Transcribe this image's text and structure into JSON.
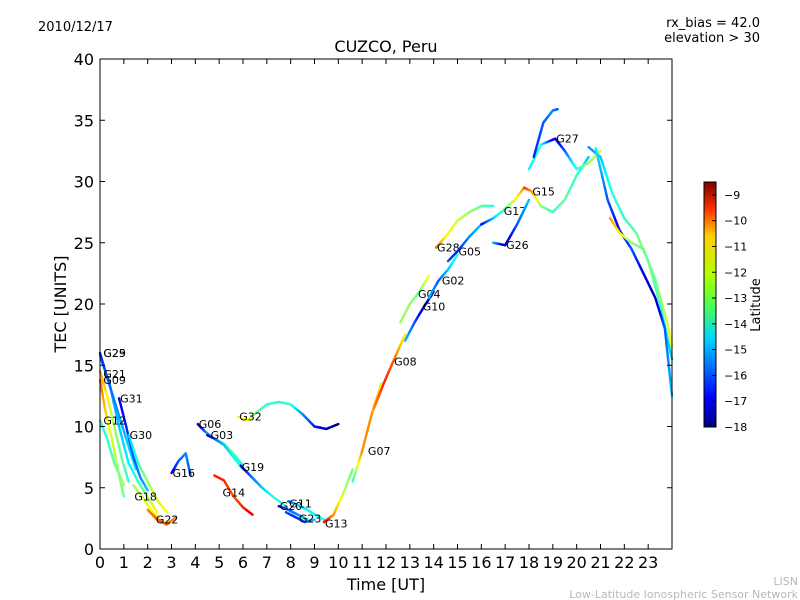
{
  "header": {
    "date": "2010/12/17",
    "rx_bias": "rx_bias = 42.0",
    "elevation": "elevation > 30",
    "credit_line1": "LISN",
    "credit_line2": "Low-Latitude Ionospheric Sensor Network"
  },
  "chart_data": {
    "type": "scatter",
    "title": "CUZCO, Peru",
    "xlabel": "Time [UT]",
    "ylabel": "TEC [UNITS]",
    "xlim": [
      0,
      24
    ],
    "ylim": [
      0,
      40
    ],
    "xticks": [
      "0",
      "1",
      "2",
      "3",
      "4",
      "5",
      "6",
      "7",
      "8",
      "9",
      "10",
      "11",
      "12",
      "13",
      "14",
      "15",
      "16",
      "17",
      "18",
      "19",
      "20",
      "21",
      "22",
      "23"
    ],
    "yticks": [
      "0",
      "5",
      "10",
      "15",
      "20",
      "25",
      "30",
      "35",
      "40"
    ],
    "colorbar": {
      "label": "Latitude",
      "range": [
        -18,
        -8.5
      ],
      "ticks": [
        "−9",
        "−10",
        "−11",
        "−12",
        "−13",
        "−14",
        "−15",
        "−16",
        "−17",
        "−18"
      ],
      "colormap": "jet"
    },
    "series": [
      {
        "name": "G29",
        "label_at": [
          0.1,
          16.0
        ],
        "points": [
          [
            0.0,
            15.8,
            -16
          ],
          [
            0.4,
            13.5,
            -15.5
          ],
          [
            0.8,
            10,
            -15
          ],
          [
            1.2,
            7,
            -14.5
          ],
          [
            1.6,
            5.5,
            -14
          ],
          [
            2.0,
            4.2,
            -13
          ],
          [
            2.4,
            3,
            -12
          ]
        ]
      },
      {
        "name": "G25",
        "label_at": [
          0.1,
          16.0
        ],
        "points": [
          [
            0.0,
            16.0,
            -16.5
          ],
          [
            0.3,
            14,
            -16
          ],
          [
            0.7,
            11.5,
            -15.5
          ],
          [
            1.1,
            9,
            -15
          ],
          [
            1.5,
            6.5,
            -14.5
          ]
        ]
      },
      {
        "name": "G21",
        "label_at": [
          0.1,
          14.3
        ],
        "points": [
          [
            0.0,
            14.5,
            -11
          ],
          [
            0.3,
            12.5,
            -12
          ],
          [
            0.6,
            10,
            -13
          ],
          [
            0.9,
            7.5,
            -13.5
          ],
          [
            1.2,
            5.5,
            -14
          ]
        ]
      },
      {
        "name": "G09",
        "label_at": [
          0.1,
          13.8
        ],
        "points": [
          [
            0.0,
            13.8,
            -10.5
          ],
          [
            0.2,
            11.5,
            -11.5
          ],
          [
            0.5,
            9,
            -12.5
          ],
          [
            0.8,
            6,
            -13
          ],
          [
            1.0,
            4.3,
            -13.5
          ]
        ]
      },
      {
        "name": "G31",
        "label_at": [
          0.8,
          12.3
        ],
        "points": [
          [
            0.8,
            12.3,
            -17
          ],
          [
            1.1,
            10,
            -16.5
          ],
          [
            1.4,
            7.5,
            -16
          ],
          [
            1.7,
            5.8,
            -15.5
          ],
          [
            2.0,
            4.8,
            -15
          ]
        ]
      },
      {
        "name": "G12",
        "label_at": [
          0.1,
          10.5
        ],
        "points": [
          [
            0.0,
            10.5,
            -14
          ],
          [
            0.3,
            9,
            -14
          ],
          [
            0.6,
            7,
            -13.5
          ],
          [
            1.0,
            5.2,
            -13
          ]
        ]
      },
      {
        "name": "G30",
        "label_at": [
          1.2,
          9.3
        ],
        "points": [
          [
            1.2,
            9.3,
            -15
          ],
          [
            1.6,
            7,
            -14
          ],
          [
            2.0,
            5.5,
            -13
          ],
          [
            2.4,
            4,
            -12.5
          ],
          [
            2.8,
            3,
            -12
          ]
        ]
      },
      {
        "name": "G18",
        "label_at": [
          1.4,
          4.3
        ],
        "points": [
          [
            1.4,
            5.2,
            -13
          ],
          [
            1.8,
            4.2,
            -12.5
          ],
          [
            2.2,
            3,
            -12
          ],
          [
            2.6,
            2.2,
            -11.5
          ]
        ]
      },
      {
        "name": "G22",
        "label_at": [
          2.3,
          2.4
        ],
        "points": [
          [
            2.0,
            3.2,
            -11
          ],
          [
            2.4,
            2.4,
            -10.5
          ],
          [
            2.8,
            2.0,
            -10.5
          ],
          [
            3.2,
            2.6,
            -11
          ]
        ]
      },
      {
        "name": "G16",
        "label_at": [
          3.0,
          6.2
        ],
        "points": [
          [
            3.0,
            6.2,
            -17
          ],
          [
            3.3,
            7.2,
            -16
          ],
          [
            3.6,
            7.8,
            -15.5
          ],
          [
            3.8,
            6,
            -16
          ]
        ]
      },
      {
        "name": "G06",
        "label_at": [
          4.1,
          10.2
        ],
        "points": [
          [
            4.1,
            10.2,
            -17.5
          ],
          [
            4.4,
            9.6,
            -16
          ],
          [
            4.8,
            9.0,
            -14
          ],
          [
            5.2,
            8.6,
            -13.5
          ],
          [
            5.6,
            7.8,
            -13.5
          ],
          [
            6.0,
            6.8,
            -14.5
          ]
        ]
      },
      {
        "name": "G03",
        "label_at": [
          4.6,
          9.3
        ],
        "points": [
          [
            4.5,
            9.3,
            -18
          ],
          [
            4.8,
            9.0,
            -16
          ],
          [
            5.2,
            8.5,
            -15
          ],
          [
            5.6,
            7.5,
            -14.5
          ],
          [
            6.0,
            6.5,
            -14
          ]
        ]
      },
      {
        "name": "G32",
        "label_at": [
          5.8,
          10.8
        ],
        "points": [
          [
            5.8,
            10.8,
            -12
          ],
          [
            6.2,
            10.5,
            -12
          ],
          [
            6.6,
            11.2,
            -13.5
          ],
          [
            7.0,
            11.8,
            -14
          ],
          [
            7.5,
            12.0,
            -14
          ],
          [
            8.0,
            11.8,
            -14
          ],
          [
            8.5,
            11,
            -15.5
          ],
          [
            9.0,
            10.0,
            -16.5
          ],
          [
            9.5,
            9.8,
            -17.5
          ],
          [
            10.0,
            10.2,
            -18
          ]
        ]
      },
      {
        "name": "G19",
        "label_at": [
          5.9,
          6.7
        ],
        "points": [
          [
            5.9,
            6.8,
            -17.5
          ],
          [
            6.3,
            6.0,
            -16
          ],
          [
            6.8,
            5.0,
            -15
          ],
          [
            7.3,
            4.2,
            -14
          ],
          [
            7.8,
            3.5,
            -14
          ]
        ]
      },
      {
        "name": "G14",
        "label_at": [
          5.1,
          4.6
        ],
        "points": [
          [
            4.8,
            6.0,
            -10
          ],
          [
            5.2,
            5.6,
            -10
          ],
          [
            5.6,
            4.3,
            -10.5
          ],
          [
            6.0,
            3.4,
            -10
          ],
          [
            6.4,
            2.8,
            -9.5
          ]
        ]
      },
      {
        "name": "G20",
        "label_at": [
          7.5,
          3.5
        ],
        "points": [
          [
            7.5,
            3.5,
            -17
          ],
          [
            7.9,
            3.2,
            -16
          ],
          [
            8.3,
            2.8,
            -15.5
          ],
          [
            8.7,
            2.4,
            -15
          ]
        ]
      },
      {
        "name": "G11",
        "label_at": [
          7.9,
          3.7
        ],
        "points": [
          [
            7.9,
            3.9,
            -16
          ],
          [
            8.3,
            3.6,
            -15
          ],
          [
            8.7,
            3.2,
            -14.5
          ],
          [
            9.1,
            2.7,
            -14.5
          ],
          [
            9.5,
            2.3,
            -14
          ]
        ]
      },
      {
        "name": "G23",
        "label_at": [
          8.3,
          2.5
        ],
        "points": [
          [
            7.8,
            3.0,
            -16
          ],
          [
            8.2,
            2.6,
            -16.5
          ],
          [
            8.6,
            2.2,
            -16
          ],
          [
            9.0,
            2.4,
            -15
          ]
        ]
      },
      {
        "name": "G13",
        "label_at": [
          9.4,
          2.1
        ],
        "points": [
          [
            9.4,
            2.2,
            -9.5
          ],
          [
            9.8,
            2.8,
            -11
          ],
          [
            10.2,
            4.5,
            -12.5
          ],
          [
            10.6,
            6.5,
            -13.5
          ]
        ]
      },
      {
        "name": "G07",
        "label_at": [
          11.2,
          8.0
        ],
        "points": [
          [
            10.6,
            5.5,
            -14
          ],
          [
            11.0,
            8.0,
            -11
          ],
          [
            11.4,
            11.0,
            -11
          ],
          [
            11.8,
            13.5,
            -12
          ]
        ]
      },
      {
        "name": "G08",
        "label_at": [
          12.3,
          15.3
        ],
        "points": [
          [
            11.5,
            11.5,
            -11
          ],
          [
            11.9,
            13.5,
            -10
          ],
          [
            12.3,
            15.3,
            -10.5
          ],
          [
            12.8,
            17.5,
            -12
          ]
        ]
      },
      {
        "name": "G10",
        "label_at": [
          13.5,
          19.8
        ],
        "points": [
          [
            12.8,
            17.0,
            -15
          ],
          [
            13.2,
            18.5,
            -16
          ],
          [
            13.6,
            19.8,
            -17.5
          ],
          [
            14.0,
            21.0,
            -17
          ]
        ]
      },
      {
        "name": "G04",
        "label_at": [
          13.3,
          20.8
        ],
        "points": [
          [
            12.6,
            18.5,
            -13
          ],
          [
            13.0,
            20,
            -13
          ],
          [
            13.4,
            21,
            -13.5
          ],
          [
            13.8,
            22.3,
            -12
          ]
        ]
      },
      {
        "name": "G02",
        "label_at": [
          14.3,
          21.9
        ],
        "points": [
          [
            13.8,
            20.5,
            -15
          ],
          [
            14.2,
            21.9,
            -16
          ],
          [
            14.6,
            22.8,
            -15
          ],
          [
            15.0,
            24.0,
            -14
          ]
        ]
      },
      {
        "name": "G28",
        "label_at": [
          14.1,
          24.6
        ],
        "points": [
          [
            14.1,
            24.6,
            -10.5
          ],
          [
            14.5,
            25.5,
            -12
          ],
          [
            15.0,
            26.8,
            -12.5
          ],
          [
            15.5,
            27.5,
            -13
          ],
          [
            16.0,
            28.0,
            -13.5
          ],
          [
            16.5,
            28.0,
            -14
          ]
        ]
      },
      {
        "name": "G05",
        "label_at": [
          15.0,
          24.3
        ],
        "points": [
          [
            14.6,
            23.5,
            -16
          ],
          [
            15.0,
            24.3,
            -16.5
          ],
          [
            15.5,
            25.5,
            -15.5
          ],
          [
            16.0,
            26.5,
            -15
          ]
        ]
      },
      {
        "name": "G17",
        "label_at": [
          16.9,
          27.6
        ],
        "points": [
          [
            16.0,
            26.5,
            -17
          ],
          [
            16.5,
            27.0,
            -15
          ],
          [
            16.9,
            27.6,
            -14
          ],
          [
            17.4,
            28.5,
            -12.5
          ],
          [
            17.8,
            29.5,
            -11
          ]
        ]
      },
      {
        "name": "G26",
        "label_at": [
          17.0,
          24.8
        ],
        "points": [
          [
            16.5,
            25.0,
            -15
          ],
          [
            17.0,
            24.8,
            -17.5
          ],
          [
            17.5,
            26.5,
            -16
          ],
          [
            18.0,
            28.5,
            -15
          ]
        ]
      },
      {
        "name": "G15",
        "label_at": [
          18.1,
          29.2
        ],
        "points": [
          [
            17.8,
            29.5,
            -10
          ],
          [
            18.1,
            29.2,
            -11
          ],
          [
            18.5,
            28.0,
            -13
          ],
          [
            19.0,
            27.5,
            -14
          ],
          [
            19.5,
            28.5,
            -13.5
          ],
          [
            20.0,
            30.5,
            -14
          ],
          [
            20.5,
            32.0,
            -15
          ]
        ]
      },
      {
        "name": "G27",
        "label_at": [
          19.1,
          33.5
        ],
        "points": [
          [
            18.0,
            31,
            -14.5
          ],
          [
            18.5,
            33.0,
            -14
          ],
          [
            19.1,
            33.5,
            -17.5
          ],
          [
            19.5,
            32.5,
            -16
          ],
          [
            20.0,
            31.0,
            -14
          ],
          [
            20.5,
            31.5,
            -13
          ],
          [
            21.0,
            32.5,
            -12.5
          ]
        ]
      },
      {
        "name": "",
        "label_at": null,
        "points": [
          [
            18.2,
            32,
            -16.5
          ],
          [
            18.6,
            34.8,
            -16
          ],
          [
            19.0,
            35.8,
            -15.5
          ],
          [
            19.2,
            35.9,
            -16
          ]
        ]
      },
      {
        "name": "",
        "label_at": null,
        "points": [
          [
            20.5,
            32.8,
            -15.5
          ],
          [
            21.0,
            32.0,
            -15
          ],
          [
            21.5,
            29,
            -14
          ],
          [
            22.0,
            27.0,
            -14
          ],
          [
            22.5,
            25.8,
            -13.5
          ],
          [
            23.0,
            23.5,
            -13
          ],
          [
            23.5,
            20.0,
            -14
          ],
          [
            24.0,
            15.5,
            -15
          ]
        ]
      },
      {
        "name": "",
        "label_at": null,
        "points": [
          [
            20.8,
            32.7,
            -14.5
          ],
          [
            21.3,
            28.5,
            -16
          ],
          [
            21.8,
            26.0,
            -17
          ],
          [
            22.3,
            24.5,
            -16
          ],
          [
            22.8,
            22.5,
            -17
          ],
          [
            23.3,
            20.5,
            -17.5
          ],
          [
            23.7,
            18.0,
            -16
          ],
          [
            24.0,
            12.5,
            -15
          ]
        ]
      },
      {
        "name": "",
        "label_at": null,
        "points": [
          [
            21.4,
            27.0,
            -11
          ],
          [
            21.8,
            25.8,
            -12
          ],
          [
            22.3,
            25.0,
            -13
          ],
          [
            22.8,
            24.5,
            -13.5
          ],
          [
            23.3,
            22.0,
            -13.5
          ],
          [
            23.8,
            18.5,
            -12.5
          ],
          [
            24.0,
            16.5,
            -12
          ]
        ]
      }
    ]
  }
}
